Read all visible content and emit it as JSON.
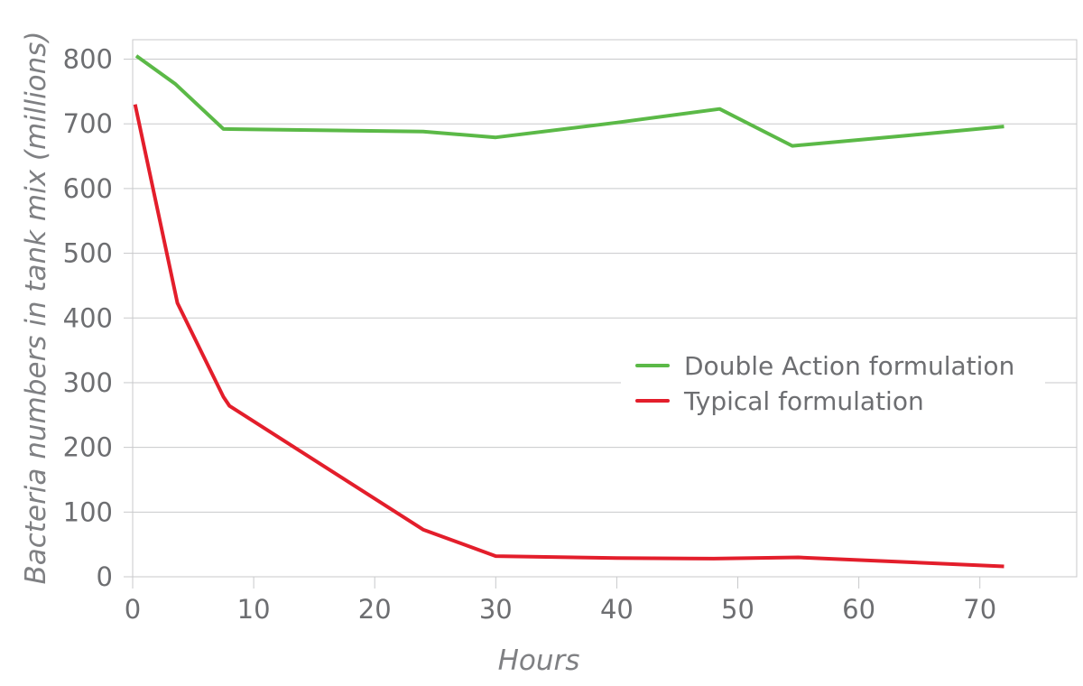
{
  "chart_data": {
    "type": "line",
    "title": "",
    "xlabel": "Hours",
    "ylabel": "Bacteria numbers in tank mix (millions)",
    "xlim": [
      0,
      78
    ],
    "ylim": [
      0,
      830
    ],
    "xticks": [
      0,
      10,
      20,
      30,
      40,
      50,
      60,
      70
    ],
    "yticks": [
      0,
      100,
      200,
      300,
      400,
      500,
      600,
      700,
      800
    ],
    "grid": "horizontal",
    "legend_position": "center-right",
    "series": [
      {
        "name": "Double Action formulation",
        "color": "#5bb947",
        "x": [
          0.3,
          3.5,
          7.5,
          24,
          30,
          40,
          48.5,
          54.5,
          64,
          72
        ],
        "y": [
          805,
          762,
          692,
          688,
          679,
          702,
          723,
          666,
          682,
          696
        ]
      },
      {
        "name": "Typical formulation",
        "color": "#e31e2b",
        "x": [
          0.2,
          3.7,
          7.5,
          8,
          24,
          30,
          40,
          48,
          55,
          72
        ],
        "y": [
          730,
          423,
          278,
          264,
          73,
          32,
          29,
          28,
          30,
          16
        ]
      }
    ]
  }
}
